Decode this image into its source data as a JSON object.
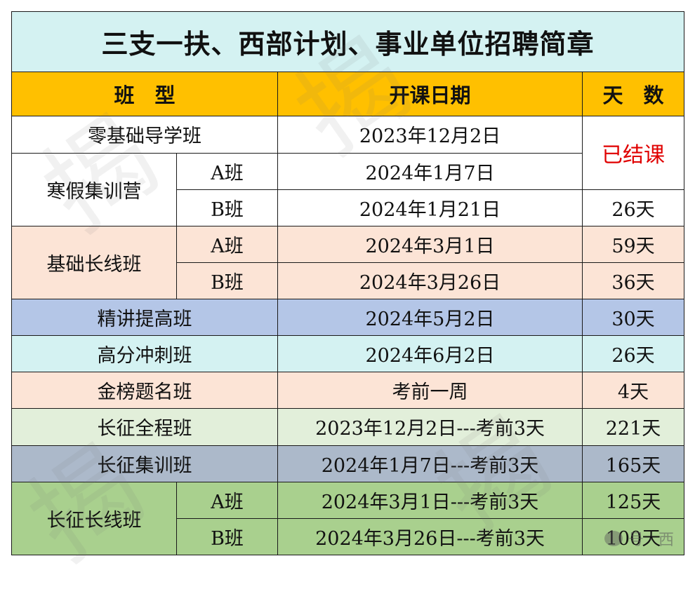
{
  "title": "三支一扶、西部计划、事业单位招聘简章",
  "headers": {
    "class_type": "班　型",
    "start_date": "开课日期",
    "days": "天　数"
  },
  "rows": {
    "r1": {
      "name": "零基础导学班",
      "date": "2023年12月2日"
    },
    "merged_status": "已结课",
    "r2": {
      "group": "寒假集训营",
      "sub_a": "A班",
      "date_a": "2024年1月7日",
      "sub_b": "B班",
      "date_b": "2024年1月21日",
      "days_b": "26天"
    },
    "r3": {
      "group": "基础长线班",
      "sub_a": "A班",
      "date_a": "2024年3月1日",
      "days_a": "59天",
      "sub_b": "B班",
      "date_b": "2024年3月26日",
      "days_b": "36天"
    },
    "r4": {
      "name": "精讲提高班",
      "date": "2024年5月2日",
      "days": "30天"
    },
    "r5": {
      "name": "高分冲刺班",
      "date": "2024年6月2日",
      "days": "26天"
    },
    "r6": {
      "name": "金榜题名班",
      "date": "考前一周",
      "days": "4天"
    },
    "r7": {
      "name": "长征全程班",
      "date": "2023年12月2日---考前3天",
      "days": "221天"
    },
    "r8": {
      "name": "长征集训班",
      "date": "2024年1月7日---考前3天",
      "days": "165天"
    },
    "r9": {
      "group": "长征长线班",
      "sub_a": "A班",
      "date_a": "2024年3月1日---考前3天",
      "days_a": "125天",
      "sub_b": "B班",
      "date_b": "2024年3月26日---考前3天",
      "days_b": "100天"
    }
  },
  "watermark_text": "揭",
  "footer_mark": "号 · 西",
  "colors": {
    "title_bg": "#d4f2f2",
    "header_bg": "#ffc000",
    "peach": "#fce4d6",
    "blue": "#b4c6e7",
    "cyan": "#d4f2f2",
    "pale_green": "#e2efda",
    "slate": "#acb9ca",
    "green": "#a9d08e",
    "status_red": "#e00000"
  }
}
